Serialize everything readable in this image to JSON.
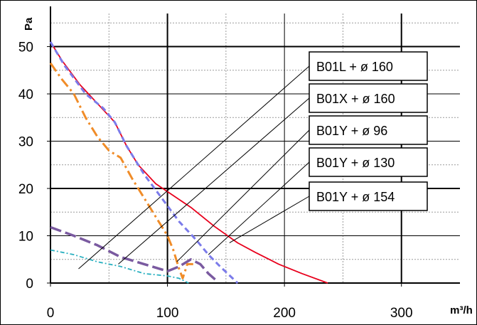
{
  "chart_data": {
    "type": "line",
    "title": "",
    "xlabel": "m³/h",
    "ylabel": "Pa",
    "xlim": [
      0,
      350
    ],
    "ylim": [
      0,
      57
    ],
    "x_ticks": [
      "0",
      "100",
      "200",
      "300"
    ],
    "y_ticks": [
      "0",
      "10",
      "20",
      "30",
      "40",
      "50"
    ],
    "grid": true,
    "legend_placement": "callout boxes at right, with leader lines",
    "series": [
      {
        "name": "B01L + ø 160",
        "color": "#e8001c",
        "dash": "solid",
        "points": [
          [
            0,
            51
          ],
          [
            10,
            47
          ],
          [
            25,
            42
          ],
          [
            40,
            38
          ],
          [
            55,
            34
          ],
          [
            65,
            29
          ],
          [
            75,
            25
          ],
          [
            90,
            21
          ],
          [
            105,
            18.5
          ],
          [
            120,
            16
          ],
          [
            140,
            12
          ],
          [
            160,
            8.5
          ],
          [
            175,
            6.5
          ],
          [
            195,
            4
          ],
          [
            215,
            2
          ],
          [
            237,
            0
          ]
        ]
      },
      {
        "name": "B01X + ø 160",
        "color": "#7b7bea",
        "dash": "dash",
        "points": [
          [
            0,
            51
          ],
          [
            12,
            46
          ],
          [
            30,
            40
          ],
          [
            45,
            37
          ],
          [
            55,
            34
          ],
          [
            65,
            29
          ],
          [
            80,
            23
          ],
          [
            95,
            18
          ],
          [
            110,
            13
          ],
          [
            125,
            9
          ],
          [
            135,
            6
          ],
          [
            145,
            3.5
          ],
          [
            160,
            0
          ]
        ]
      },
      {
        "name": "B01Y + ø 96",
        "color": "#f08c28",
        "dash": "dashdot",
        "points": [
          [
            0,
            46.5
          ],
          [
            10,
            43
          ],
          [
            20,
            40
          ],
          [
            30,
            35
          ],
          [
            40,
            31
          ],
          [
            50,
            28
          ],
          [
            60,
            26.5
          ],
          [
            70,
            22
          ],
          [
            80,
            18
          ],
          [
            90,
            14
          ],
          [
            100,
            10
          ],
          [
            105,
            7
          ],
          [
            110,
            3
          ],
          [
            113,
            1
          ],
          [
            117,
            4
          ],
          [
            122,
            4
          ]
        ]
      },
      {
        "name": "B01Y + ø 130",
        "color": "#7a5aa0",
        "dash": "longdash",
        "points": [
          [
            0,
            11.8
          ],
          [
            20,
            10
          ],
          [
            40,
            8
          ],
          [
            60,
            5.5
          ],
          [
            80,
            4
          ],
          [
            100,
            2.5
          ],
          [
            110,
            3.5
          ],
          [
            120,
            5
          ],
          [
            128,
            4
          ],
          [
            135,
            2
          ],
          [
            142,
            0.5
          ]
        ]
      },
      {
        "name": "B01Y + ø 154",
        "color": "#2ab0c0",
        "dash": "dotdash",
        "points": [
          [
            0,
            7
          ],
          [
            20,
            6
          ],
          [
            40,
            4.5
          ],
          [
            60,
            3.5
          ],
          [
            80,
            2
          ],
          [
            100,
            1.5
          ],
          [
            110,
            1
          ],
          [
            118,
            0
          ]
        ]
      }
    ]
  }
}
